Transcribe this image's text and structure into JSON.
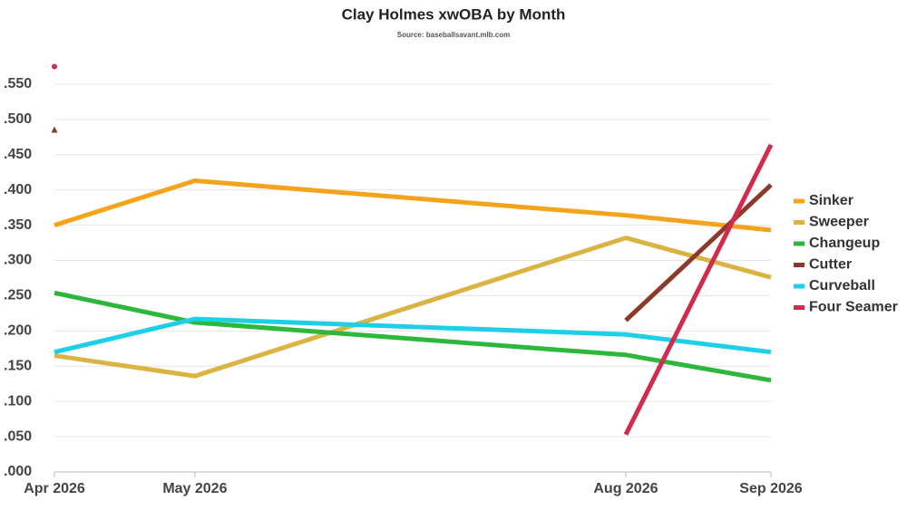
{
  "chart_data": {
    "type": "line",
    "title": "Clay Holmes xwOBA by Month",
    "subtitle": "Source: baseballsavant.mlb.com",
    "x": [
      "Apr 2026",
      "May 2026",
      "Aug 2026",
      "Sep 2026"
    ],
    "ylim": [
      0,
      0.6
    ],
    "yticks": [
      {
        "value": 0,
        "label": ".000"
      },
      {
        "value": 0.05,
        "label": ".050"
      },
      {
        "value": 0.1,
        "label": ".100"
      },
      {
        "value": 0.15,
        "label": ".150"
      },
      {
        "value": 0.2,
        "label": ".200"
      },
      {
        "value": 0.25,
        "label": ".250"
      },
      {
        "value": 0.3,
        "label": ".300"
      },
      {
        "value": 0.35,
        "label": ".350"
      },
      {
        "value": 0.4,
        "label": ".400"
      },
      {
        "value": 0.45,
        "label": ".450"
      },
      {
        "value": 0.5,
        "label": ".500"
      },
      {
        "value": 0.55,
        "label": ".550"
      }
    ],
    "grid": true,
    "legend": "right",
    "series": [
      {
        "name": "Sinker",
        "color": "#f5a31a",
        "values": [
          0.35,
          0.413,
          0.364,
          0.343
        ]
      },
      {
        "name": "Sweeper",
        "color": "#d9b443",
        "values": [
          0.165,
          0.136,
          0.332,
          0.276
        ]
      },
      {
        "name": "Changeup",
        "color": "#2db83d",
        "values": [
          0.254,
          0.212,
          0.166,
          0.13
        ]
      },
      {
        "name": "Cutter",
        "color": "#8b3a2a",
        "marker": "triangle",
        "values": [
          0.485,
          null,
          0.215,
          0.407
        ]
      },
      {
        "name": "Curveball",
        "color": "#1fcfe8",
        "values": [
          0.17,
          0.217,
          0.195,
          0.17
        ]
      },
      {
        "name": "Four Seamer",
        "color": "#d12c4b",
        "marker": "circle",
        "values": [
          0.575,
          null,
          0.053,
          0.464
        ]
      }
    ]
  }
}
